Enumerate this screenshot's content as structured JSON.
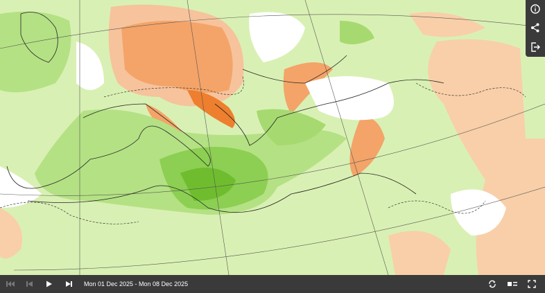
{
  "player": {
    "date_range": "Mon 01 Dec 2025 - Mon 08 Dec 2025"
  }
}
